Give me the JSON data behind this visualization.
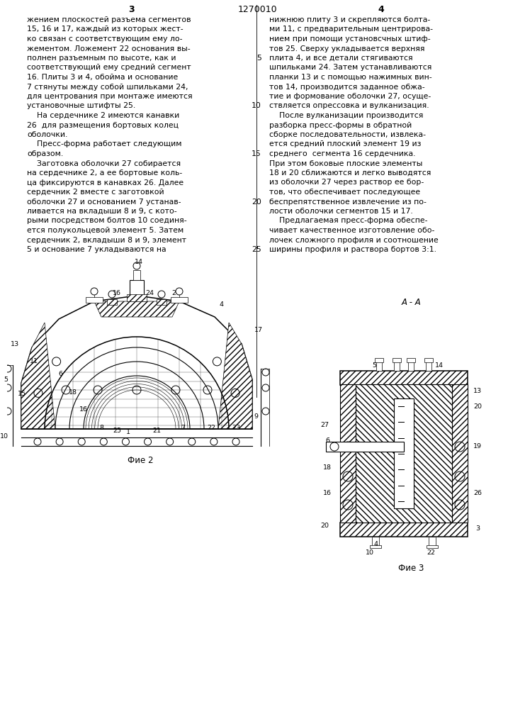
{
  "page_number_left": "3",
  "page_number_center": "1270010",
  "page_number_right": "4",
  "background_color": "#ffffff",
  "left_col_lines": [
    "жением плоскостей разъема сегментов",
    "15, 16 и 17, каждый из которых жест-",
    "ко связан с соответствующим ему ло-",
    "жементом. Ложемент 22 основания вы-",
    "полнен разъемным по высоте, как и",
    "соответствующий ему средний сегмент",
    "16. Плиты 3 и 4, обойма и основание",
    "7 стянуты между собой шпильками 24,",
    "для центрования при монтаже имеются",
    "установочные штифты 25.",
    "    На сердечнике 2 имеются канавки",
    "26  для размещения бортовых колец",
    "оболочки.",
    "    Пресс-форма работает следующим",
    "образом.",
    "    Заготовка оболочки 27 собирается",
    "на сердечнике 2, а ее бортовые коль-",
    "ца фиксируются в канавках 26. Далее",
    "сердечник 2 вместе с заготовкой",
    "оболочки 27 и основанием 7 устанав-",
    "ливается на вкладыши 8 и 9, с кото-",
    "рыми посредством болтов 10 соединя-",
    "ется полукольцевой элемент 5. Затем",
    "сердечник 2, вкладыши 8 и 9, элемент",
    "5 и основание 7 укладываются на"
  ],
  "right_col_lines": [
    "нижнюю плиту 3 и скрепляются болта-",
    "ми 11, с предварительным центрирова-",
    "нием при помощи установсчных штиф-",
    "тов 25. Сверху укладывается верхняя",
    "плита 4, и все детали стягиваются",
    "шпильками 24. Затем устанавливаются",
    "планки 13 и с помощью нажимных вин-",
    "тов 14, производится заданное обжа-",
    "тие и формование оболочки 27, осуще-",
    "ствляется опрессовка и вулканизация.",
    "    После вулканизации производится",
    "разборка пресс-формы в обратной",
    "сборке последовательности, извлека-",
    "ется средний плоский элемент 19 из",
    "среднего  сегмента 16 сердечника.",
    "При этом боковые плоские элементы",
    "18 и 20 сближаются и легко выводятся",
    "из оболочки 27 через раствор ее бор-",
    "тов, что обеспечивает последующее",
    "беспрепятственное извлечение из по-",
    "лости оболочки сегментов 15 и 17.",
    "    Предлагаемая пресс-форма обеспе-",
    "чивает качественное изготовление обо-",
    "лочек сложного профиля и соотношение",
    "ширины профиля и раствора бортов 3:1."
  ],
  "line_num_rows": [
    4,
    9,
    14,
    19,
    24
  ],
  "line_num_vals": [
    5,
    10,
    15,
    20,
    25
  ],
  "fig2_label": "Фие 2",
  "fig3_label": "Фие 3",
  "section_label": "A - A"
}
